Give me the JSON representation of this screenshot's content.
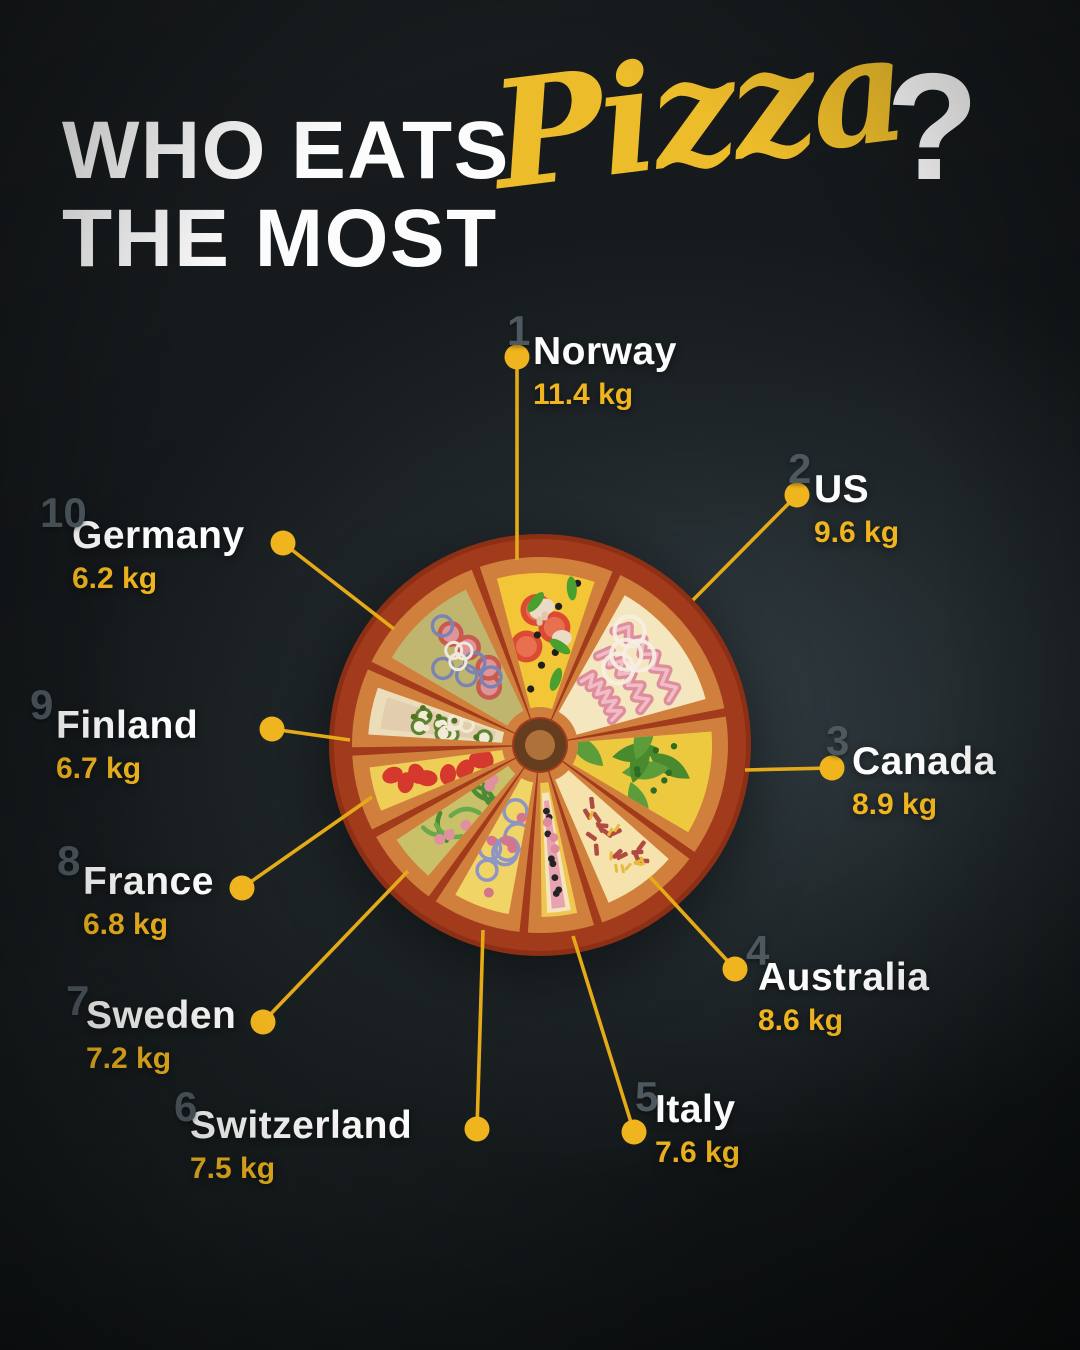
{
  "title": {
    "line1": "WHO EATS",
    "line2": "THE MOST",
    "highlight": "Pizza",
    "question": "?"
  },
  "chart_data": {
    "type": "pie",
    "title": "Who eats the most Pizza?",
    "unit": "kg",
    "legend_position": "around",
    "items": [
      {
        "rank": "1",
        "country": "Norway",
        "value_kg": 11.4,
        "label": "11.4 kg"
      },
      {
        "rank": "2",
        "country": "US",
        "value_kg": 9.6,
        "label": "9.6 kg"
      },
      {
        "rank": "3",
        "country": "Canada",
        "value_kg": 8.9,
        "label": "8.9 kg"
      },
      {
        "rank": "4",
        "country": "Australia",
        "value_kg": 8.6,
        "label": "8.6 kg"
      },
      {
        "rank": "5",
        "country": "Italy",
        "value_kg": 7.6,
        "label": "7.6 kg"
      },
      {
        "rank": "6",
        "country": "Switzerland",
        "value_kg": 7.5,
        "label": "7.5 kg"
      },
      {
        "rank": "7",
        "country": "Sweden",
        "value_kg": 7.2,
        "label": "7.2 kg"
      },
      {
        "rank": "8",
        "country": "France",
        "value_kg": 6.8,
        "label": "6.8 kg"
      },
      {
        "rank": "9",
        "country": "Finland",
        "value_kg": 6.7,
        "label": "6.7 kg"
      },
      {
        "rank": "10",
        "country": "Germany",
        "value_kg": 6.2,
        "label": "6.2 kg"
      }
    ],
    "colors": {
      "accent_yellow": "#efb41e",
      "title_yellow": "#edbc2b",
      "text_white": "#fcfcfc",
      "rank_gray": "#4d585f",
      "background": "#15181a",
      "pizza_crust": "#a23a1c",
      "pizza_separator": "#d0803c"
    }
  }
}
